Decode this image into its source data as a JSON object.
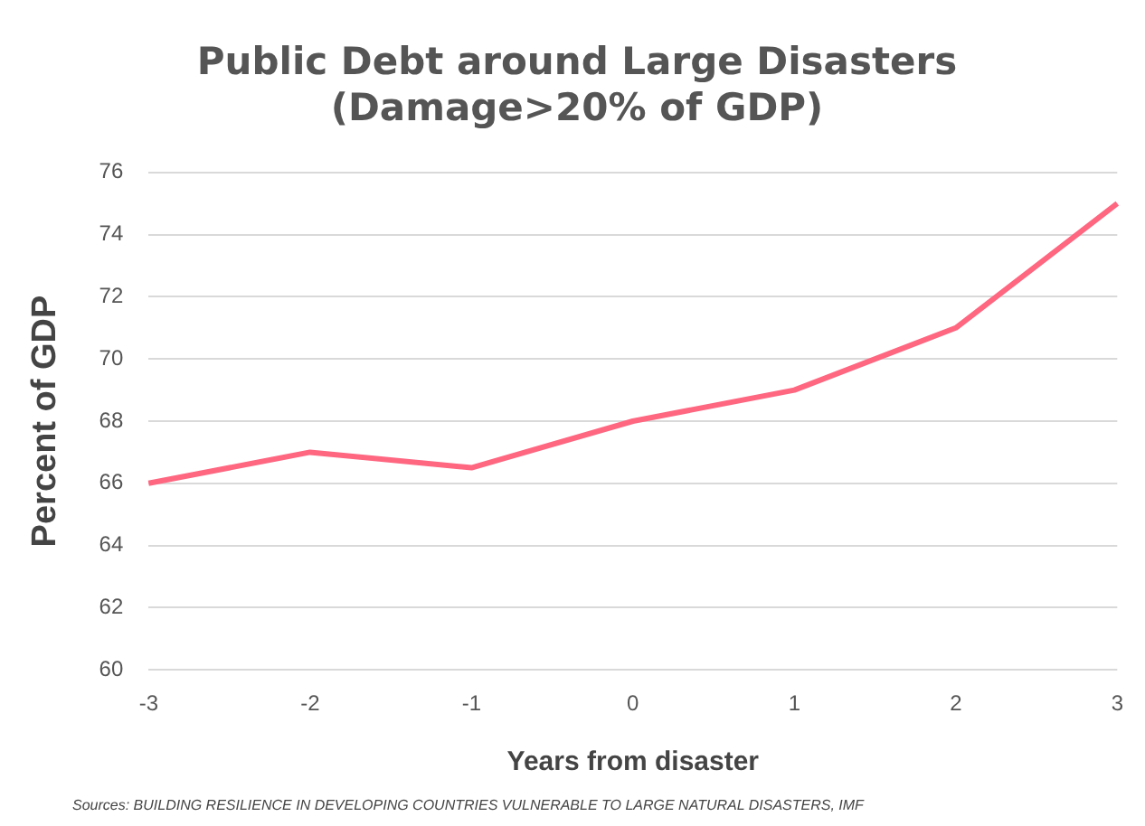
{
  "chart_data": {
    "type": "line",
    "title": [
      "Public Debt around Large Disasters",
      "(Damage>20% of GDP)"
    ],
    "xlabel": "Years from disaster",
    "ylabel": "Percent of GDP",
    "categories": [
      "-3",
      "-2",
      "-1",
      "0",
      "1",
      "2",
      "3"
    ],
    "series": [
      {
        "color": "#ff6680",
        "values": [
          66,
          67,
          66.5,
          68,
          69,
          71,
          75
        ]
      }
    ],
    "ylim": [
      60,
      76
    ],
    "yticks": [
      60,
      62,
      64,
      66,
      68,
      70,
      72,
      74,
      76
    ],
    "grid": "y",
    "legend": false,
    "marker": "none",
    "line_style": "solid",
    "annotations": [
      "Sources: BUILDING RESILIENCE IN DEVELOPING COUNTRIES VULNERABLE TO LARGE NATURAL DISASTERS, IMF"
    ]
  }
}
